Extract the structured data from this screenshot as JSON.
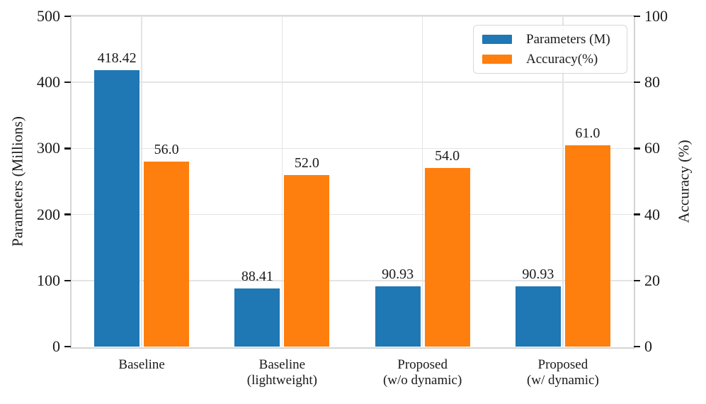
{
  "chart_data": {
    "type": "bar",
    "title": "",
    "categories": [
      {
        "lines": [
          "Baseline"
        ]
      },
      {
        "lines": [
          "Baseline",
          "(lightweight)"
        ]
      },
      {
        "lines": [
          "Proposed",
          "(w/o dynamic)"
        ]
      },
      {
        "lines": [
          "Proposed",
          "(w/ dynamic)"
        ]
      }
    ],
    "series": [
      {
        "name": "Parameters (M)",
        "axis": "left",
        "color": "#1f77b4",
        "values": [
          418.42,
          88.41,
          90.93,
          90.93
        ],
        "value_labels": [
          "418.42",
          "88.41",
          "90.93",
          "90.93"
        ]
      },
      {
        "name": "Accuracy(%)",
        "axis": "right",
        "color": "#ff7f0e",
        "values": [
          56.0,
          52.0,
          54.0,
          61.0
        ],
        "value_labels": [
          "56.0",
          "52.0",
          "54.0",
          "61.0"
        ]
      }
    ],
    "left_axis": {
      "label": "Parameters (Millions)",
      "ticks": [
        0,
        100,
        200,
        300,
        400,
        500
      ],
      "min": 0,
      "max": 500
    },
    "right_axis": {
      "label": "Accuracy (%)",
      "ticks": [
        0,
        20,
        40,
        60,
        80,
        100
      ],
      "min": 0,
      "max": 100
    },
    "legend": {
      "position": "upper right",
      "entries": [
        "Parameters (M)",
        "Accuracy(%)"
      ]
    },
    "grid": {
      "horizontal": true,
      "vertical": true
    },
    "style_colors": {
      "spine": "#d4d4d4",
      "grid": "#e4e4e4",
      "tick": "#1a1a1a",
      "text": "#1a1a1a",
      "legend_border": "#d9d9d9",
      "background": "#ffffff"
    }
  }
}
